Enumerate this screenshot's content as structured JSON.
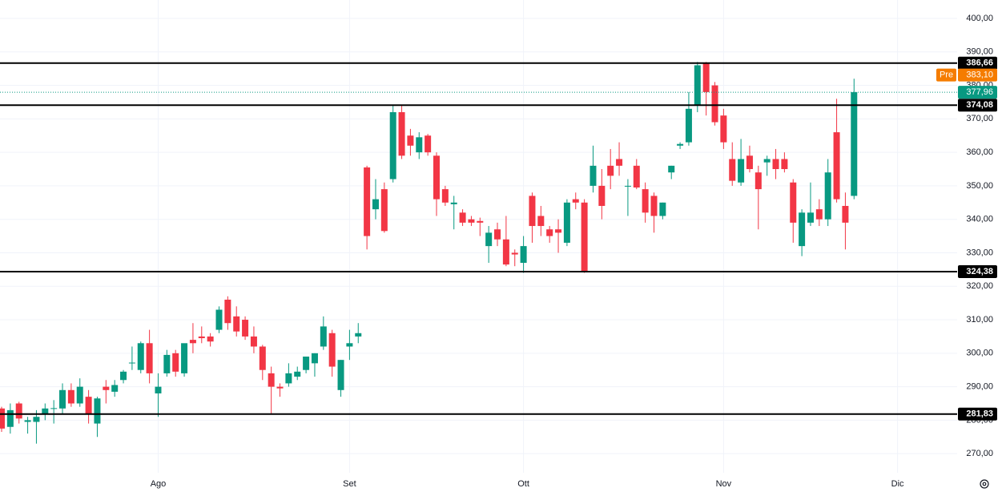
{
  "chart_data": {
    "type": "candlestick",
    "categories": [
      null,
      null,
      null,
      null,
      null,
      null,
      null,
      null,
      null,
      null,
      null,
      null,
      null,
      null,
      null,
      null,
      null,
      null,
      "Ago",
      null,
      null,
      null,
      null,
      null,
      null,
      null,
      null,
      null,
      null,
      null,
      null,
      null,
      null,
      null,
      null,
      null,
      null,
      null,
      null,
      null,
      "Set",
      null,
      null,
      null,
      null,
      null,
      null,
      null,
      null,
      null,
      null,
      null,
      null,
      null,
      null,
      null,
      null,
      null,
      null,
      null,
      "Ott",
      null,
      null,
      null,
      null,
      null,
      null,
      null,
      null,
      null,
      null,
      null,
      null,
      null,
      null,
      null,
      null,
      null,
      null,
      null,
      null,
      null,
      null,
      "Nov",
      null,
      null,
      null,
      null,
      null,
      null,
      null,
      null,
      null,
      null,
      null,
      null,
      null,
      null,
      null,
      null,
      null,
      null,
      null,
      "Dic",
      null,
      null,
      null,
      null,
      null,
      null
    ],
    "open": [
      283.5,
      278,
      285,
      279.5,
      279.5,
      282,
      283.5,
      283.5,
      289,
      285,
      287,
      279,
      290,
      288.5,
      292,
      297,
      295,
      303,
      288,
      294,
      300,
      294,
      304,
      305,
      305,
      307,
      316,
      311,
      310,
      305,
      302,
      294,
      290,
      291,
      293,
      295,
      297,
      302,
      306,
      289,
      302,
      305,
      355.5,
      343,
      349,
      352,
      372,
      365,
      360,
      365,
      359,
      349,
      344.5,
      342,
      340,
      339.5,
      332,
      337,
      334,
      330,
      327,
      347,
      341,
      337,
      337,
      333,
      346,
      345,
      350,
      350,
      356,
      358,
      350,
      356,
      349,
      347,
      341,
      354,
      362,
      363,
      374,
      386.5,
      380,
      371,
      358,
      351,
      359,
      354,
      357,
      358,
      358,
      351,
      332,
      339,
      343,
      340,
      366,
      344,
      347,
      null,
      null,
      null,
      null,
      null,
      null,
      null,
      null,
      null,
      null,
      null
    ],
    "high": [
      284,
      285,
      285.5,
      281,
      283,
      285,
      286,
      291,
      291,
      292.5,
      289,
      287,
      292,
      292,
      295,
      302,
      303.5,
      307,
      294,
      301,
      301,
      302.5,
      309,
      308,
      306,
      314,
      317,
      314,
      311,
      308,
      302.5,
      296,
      291,
      297,
      296,
      298,
      300,
      311,
      307,
      298,
      307,
      309,
      356,
      352,
      351,
      374,
      374,
      367,
      366,
      365.5,
      360,
      350,
      347,
      343,
      341,
      340.5,
      338,
      339,
      341,
      331,
      335,
      348,
      344,
      338,
      340,
      346,
      348,
      346,
      362,
      355,
      361,
      363,
      352,
      358,
      351,
      348,
      345,
      356,
      363,
      378,
      387,
      387,
      381,
      373,
      363,
      364,
      362,
      356,
      359,
      361,
      360,
      352,
      343,
      351,
      346,
      358,
      376,
      348,
      382,
      null,
      null,
      null,
      null,
      null,
      null,
      null,
      null,
      null,
      null,
      null
    ],
    "low": [
      276.5,
      276,
      279,
      276,
      273,
      280,
      279,
      282,
      284,
      284,
      279,
      275,
      285,
      287,
      291,
      295,
      294,
      291,
      281,
      293,
      293,
      293,
      300,
      303,
      302,
      306,
      307,
      305,
      304,
      300,
      292,
      282,
      287,
      290,
      292,
      294,
      293,
      301,
      293,
      287,
      298,
      303,
      331,
      340,
      336,
      351,
      358,
      359,
      358,
      359,
      341,
      344,
      337,
      338,
      338,
      335,
      327,
      332,
      326,
      326,
      324,
      333,
      335,
      333,
      330,
      332,
      343,
      324,
      348,
      340,
      349,
      353,
      341,
      349,
      339,
      336,
      340,
      352,
      361,
      362,
      372,
      371,
      368,
      361,
      350,
      350,
      354,
      337,
      353,
      352,
      354,
      333,
      329,
      338,
      338,
      338,
      345,
      331,
      346,
      null,
      null,
      null,
      null,
      null,
      null,
      null,
      null,
      null,
      null,
      null
    ],
    "close": [
      277.5,
      283,
      280.5,
      280,
      281,
      283.5,
      283.6,
      289,
      285,
      290,
      282,
      286.5,
      289,
      290.5,
      294.5,
      297.2,
      303,
      294,
      290,
      299.5,
      294.5,
      303,
      303,
      304.5,
      303.5,
      313,
      309,
      306.5,
      305,
      302,
      295,
      290,
      289.5,
      294,
      294.5,
      299,
      300,
      308,
      296,
      298,
      303,
      306,
      335,
      346,
      336.5,
      372,
      359,
      362,
      364.5,
      360,
      346,
      345,
      345,
      339,
      339,
      339,
      336,
      334,
      326.5,
      329.5,
      332,
      338,
      338,
      335,
      336,
      345,
      345,
      324.5,
      356,
      344,
      353,
      356,
      350,
      349.5,
      342,
      341,
      345,
      356,
      362.5,
      373,
      386,
      378,
      369,
      363,
      351.5,
      358,
      355,
      349,
      358,
      355,
      355,
      339,
      342,
      342,
      340,
      354,
      346,
      339,
      377.96,
      null,
      null,
      null,
      null,
      null,
      null,
      null,
      null,
      null,
      null,
      null
    ],
    "up_color": "#089981",
    "down_color": "#f23645",
    "ylim": [
      264.3,
      405.5
    ],
    "yticks": [
      {
        "value": 270,
        "label": "270,00"
      },
      {
        "value": 280,
        "label": "280,00"
      },
      {
        "value": 290,
        "label": "290,00"
      },
      {
        "value": 300,
        "label": "300,00"
      },
      {
        "value": 310,
        "label": "310,00"
      },
      {
        "value": 320,
        "label": "320,00"
      },
      {
        "value": 330,
        "label": "330,00"
      },
      {
        "value": 340,
        "label": "340,00"
      },
      {
        "value": 350,
        "label": "350,00"
      },
      {
        "value": 360,
        "label": "360,00"
      },
      {
        "value": 370,
        "label": "370,00"
      },
      {
        "value": 380,
        "label": "380,00"
      },
      {
        "value": 390,
        "label": "390,00"
      },
      {
        "value": 400,
        "label": "400,00"
      }
    ],
    "grid": true,
    "hlines": [
      {
        "value": 386.66,
        "label": "386,66"
      },
      {
        "value": 374.08,
        "label": "374,08"
      },
      {
        "value": 324.38,
        "label": "324,38"
      },
      {
        "value": 281.83,
        "label": "281,83"
      }
    ],
    "pre_price": {
      "tag": "Pre",
      "value": 383.1,
      "label": "383,10",
      "color": "#f57c00"
    },
    "last_price": {
      "value": 377.96,
      "label": "377,96",
      "color": "#089981"
    }
  }
}
